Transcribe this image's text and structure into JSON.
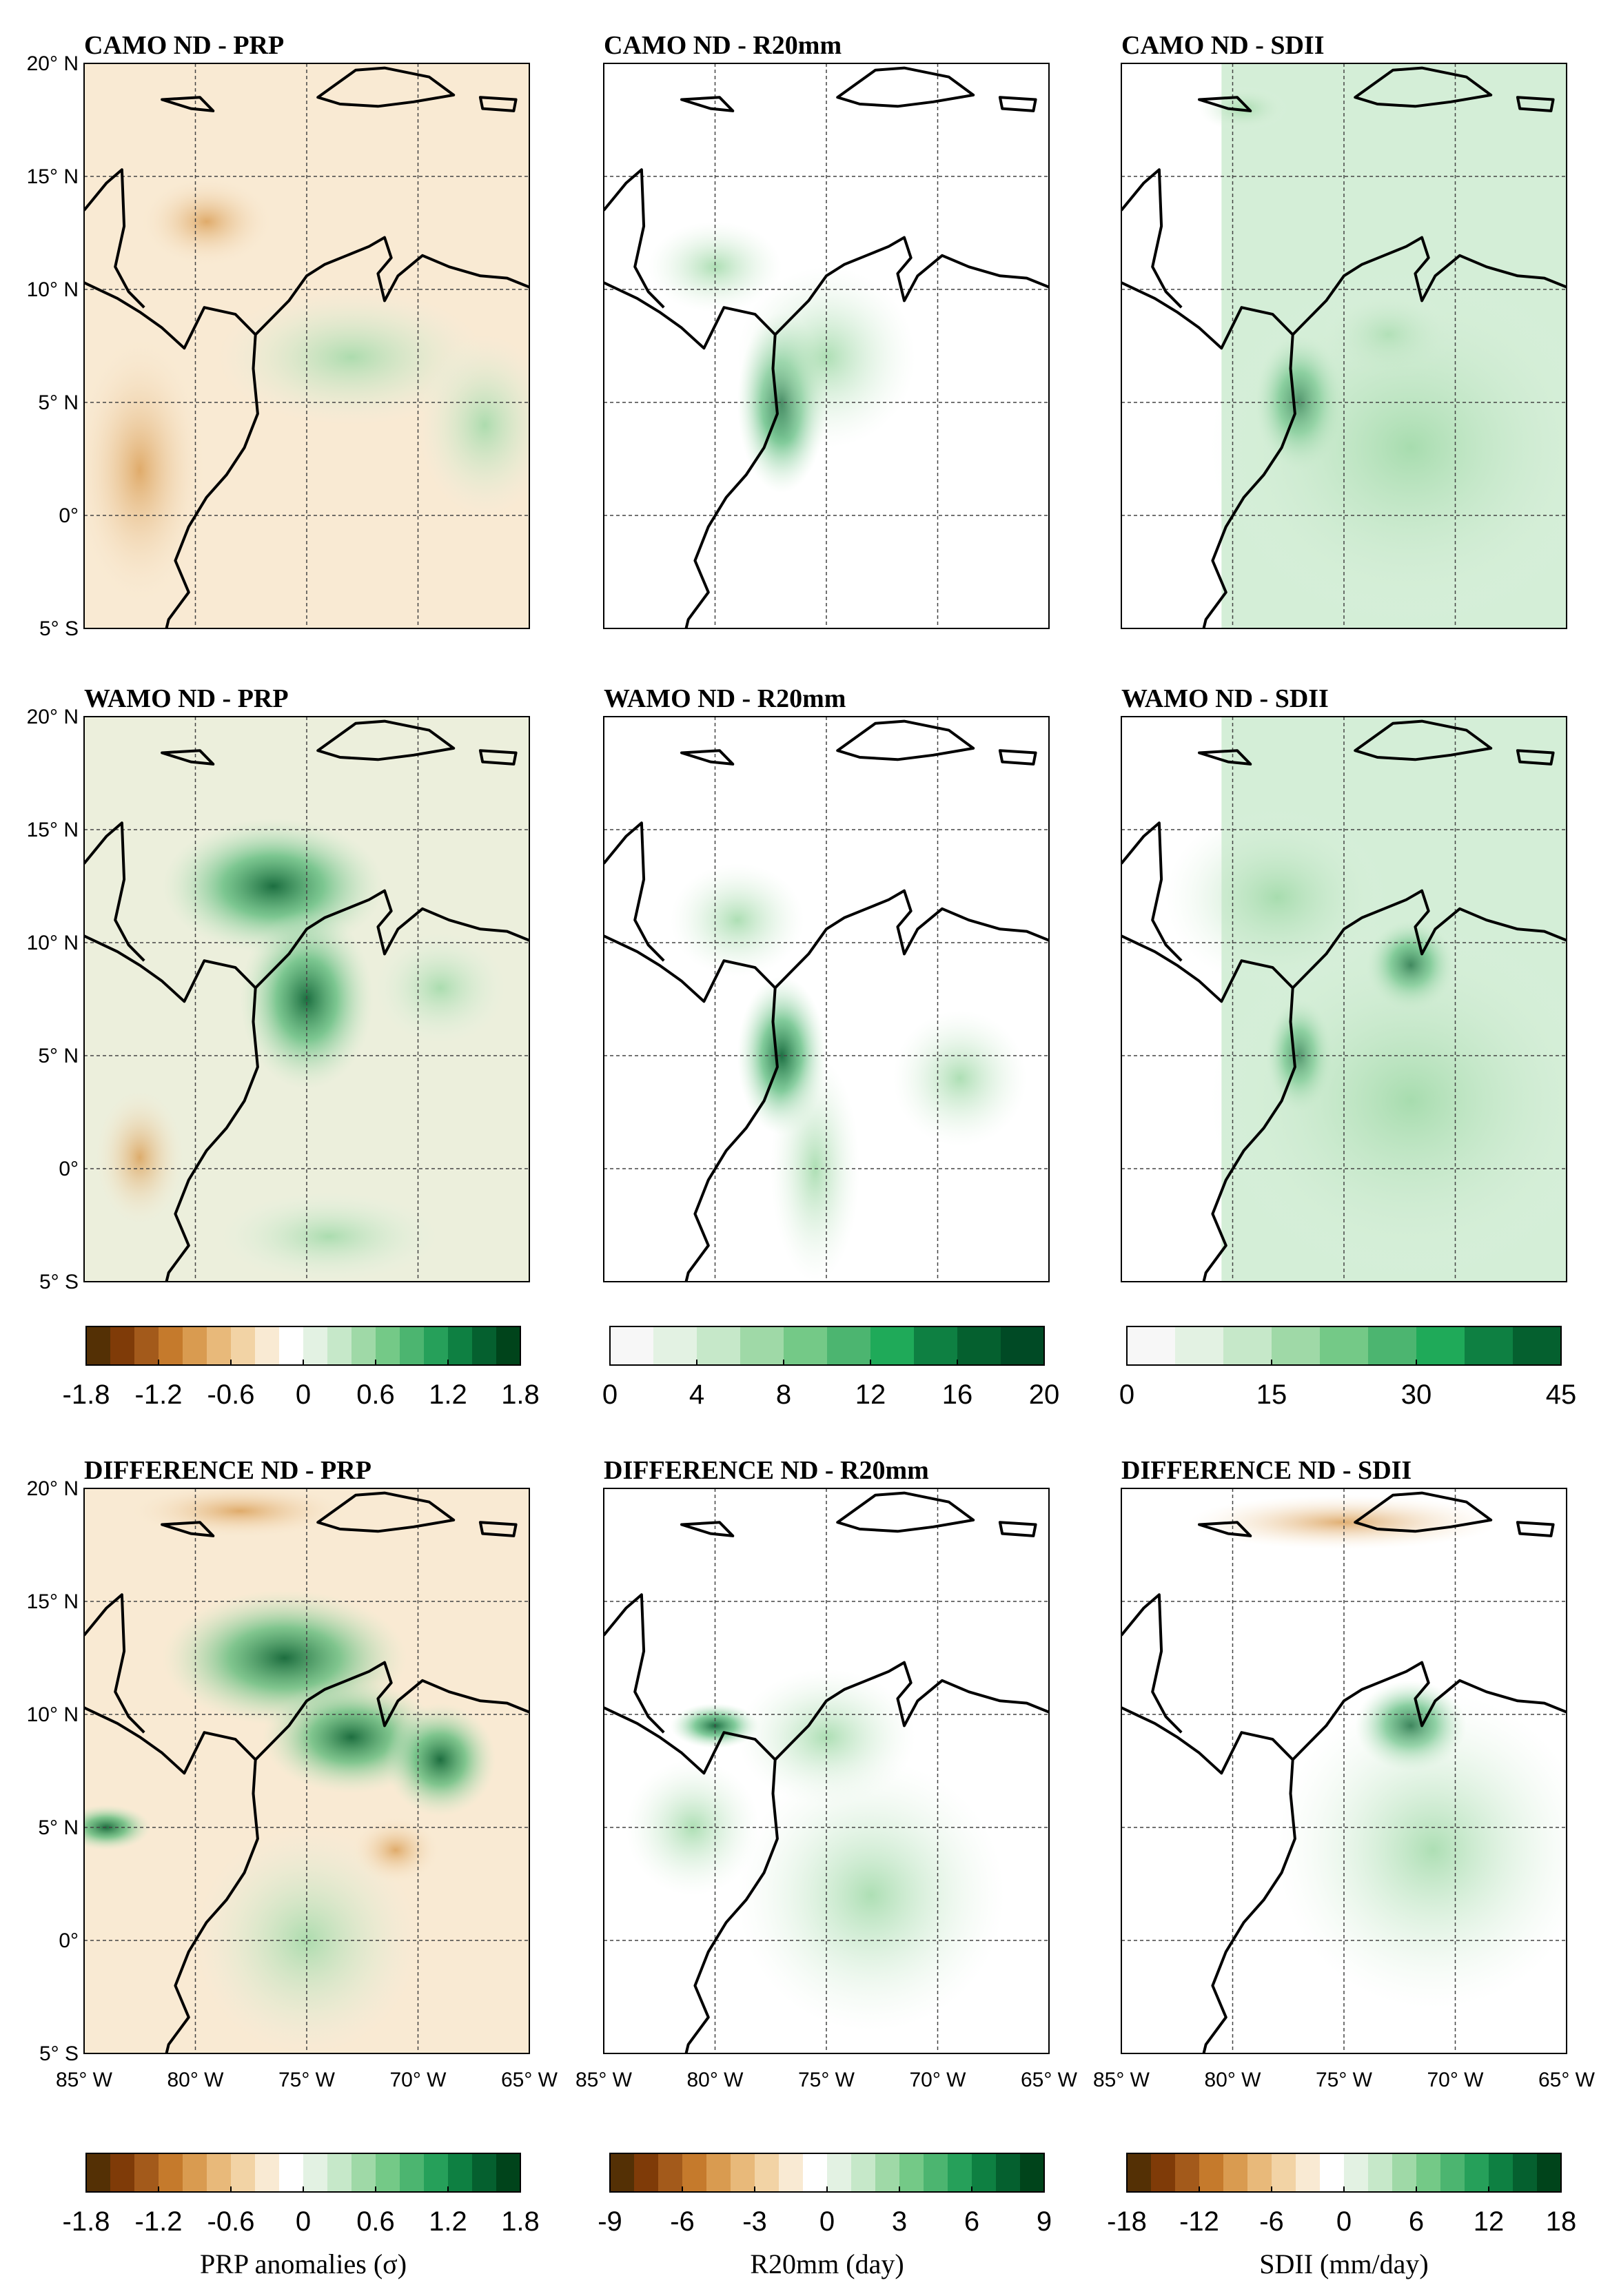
{
  "figure": {
    "panel_titles": [
      [
        "CAMO ND - PRP",
        "CAMO ND - R20mm",
        "CAMO ND - SDII"
      ],
      [
        "WAMO ND - PRP",
        "WAMO ND - R20mm",
        "WAMO ND - SDII"
      ],
      [
        "DIFFERENCE ND - PRP",
        "DIFFERENCE ND - R20mm",
        "DIFFERENCE ND - SDII"
      ]
    ],
    "lat_tick_labels": [
      "20° N",
      "15° N",
      "10° N",
      "5° N",
      "0°",
      "5° S"
    ],
    "lon_tick_labels": [
      "85° W",
      "80° W",
      "75° W",
      "70° W",
      "65° W"
    ],
    "colorbars_rows_1_2": [
      {
        "ticks": [
          "-1.8",
          "-1.2",
          "-0.6",
          "0",
          "0.6",
          "1.2",
          "1.8"
        ],
        "label": ""
      },
      {
        "ticks": [
          "0",
          "4",
          "8",
          "12",
          "16",
          "20"
        ],
        "label": ""
      },
      {
        "ticks": [
          "0",
          "15",
          "30",
          "45"
        ],
        "label": ""
      }
    ],
    "colorbars_row_3": [
      {
        "ticks": [
          "-1.8",
          "-1.2",
          "-0.6",
          "0",
          "0.6",
          "1.2",
          "1.8"
        ],
        "label": "PRP anomalies (σ)"
      },
      {
        "ticks": [
          "-9",
          "-6",
          "-3",
          "0",
          "3",
          "6",
          "9"
        ],
        "label": "R20mm (day)"
      },
      {
        "ticks": [
          "-18",
          "-12",
          "-6",
          "0",
          "6",
          "12",
          "18"
        ],
        "label": "SDII (mm/day)"
      }
    ]
  },
  "colors": {
    "diverging": [
      "#543005",
      "#7f3b08",
      "#a35a1b",
      "#c57a2c",
      "#d99b50",
      "#e8b97a",
      "#f2d3a5",
      "#f9ead3",
      "#ffffff",
      "#e3f2e3",
      "#c6e8c9",
      "#9fd9a7",
      "#74c987",
      "#4cb570",
      "#26a05a",
      "#0e8042",
      "#05602f",
      "#00441b"
    ],
    "sequential": [
      "#f7f7f7",
      "#e3f2e3",
      "#c6e8c9",
      "#9fd9a7",
      "#74c987",
      "#4cb570",
      "#1faa59",
      "#0e8042",
      "#05602f",
      "#004a25",
      "#00381a"
    ]
  },
  "chart_data": [
    {
      "type": "heatmap",
      "title": "CAMO ND - PRP",
      "variable": "PRP anomalies (σ)",
      "xlim": [
        -85,
        -65
      ],
      "ylim": [
        -5,
        20
      ],
      "clim": [
        -1.8,
        1.8
      ]
    },
    {
      "type": "heatmap",
      "title": "CAMO ND - R20mm",
      "variable": "R20mm (day)",
      "xlim": [
        -85,
        -65
      ],
      "ylim": [
        -5,
        20
      ],
      "clim": [
        0,
        20
      ]
    },
    {
      "type": "heatmap",
      "title": "CAMO ND - SDII",
      "variable": "SDII (mm/day)",
      "xlim": [
        -85,
        -65
      ],
      "ylim": [
        -5,
        20
      ],
      "clim": [
        0,
        45
      ]
    },
    {
      "type": "heatmap",
      "title": "WAMO ND - PRP",
      "variable": "PRP anomalies (σ)",
      "xlim": [
        -85,
        -65
      ],
      "ylim": [
        -5,
        20
      ],
      "clim": [
        -1.8,
        1.8
      ]
    },
    {
      "type": "heatmap",
      "title": "WAMO ND - R20mm",
      "variable": "R20mm (day)",
      "xlim": [
        -85,
        -65
      ],
      "ylim": [
        -5,
        20
      ],
      "clim": [
        0,
        20
      ]
    },
    {
      "type": "heatmap",
      "title": "WAMO ND - SDII",
      "variable": "SDII (mm/day)",
      "xlim": [
        -85,
        -65
      ],
      "ylim": [
        -5,
        20
      ],
      "clim": [
        0,
        45
      ]
    },
    {
      "type": "heatmap",
      "title": "DIFFERENCE ND - PRP",
      "variable": "PRP anomalies (σ)",
      "xlim": [
        -85,
        -65
      ],
      "ylim": [
        -5,
        20
      ],
      "clim": [
        -1.8,
        1.8
      ]
    },
    {
      "type": "heatmap",
      "title": "DIFFERENCE ND - R20mm",
      "variable": "R20mm (day)",
      "xlim": [
        -85,
        -65
      ],
      "ylim": [
        -5,
        20
      ],
      "clim": [
        -9,
        9
      ]
    },
    {
      "type": "heatmap",
      "title": "DIFFERENCE ND - SDII",
      "variable": "SDII (mm/day)",
      "xlim": [
        -85,
        -65
      ],
      "ylim": [
        -5,
        20
      ],
      "clim": [
        -18,
        18
      ]
    }
  ]
}
